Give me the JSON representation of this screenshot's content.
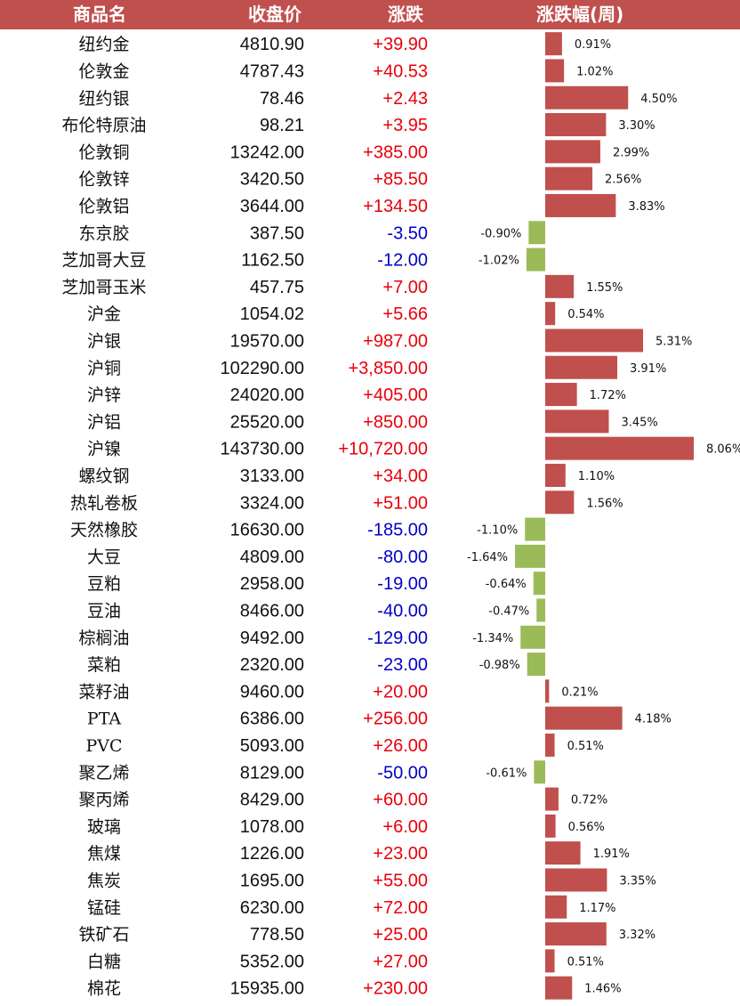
{
  "header": {
    "name": "商品名",
    "close": "收盘价",
    "change": "涨跌",
    "pct": "涨跌幅(周)"
  },
  "colors": {
    "header_bg": "#c0504d",
    "header_text": "#ffffff",
    "up_bar": "#c0504d",
    "down_bar": "#9bbb59",
    "up_text": "#e8000b",
    "down_text": "#0000c8"
  },
  "chart_data": {
    "type": "bar",
    "title": "",
    "columns": [
      "商品名",
      "收盘价",
      "涨跌",
      "涨跌幅(周)"
    ],
    "series": [
      {
        "name": "涨跌幅(周)",
        "unit": "%"
      }
    ],
    "rows": [
      {
        "name": "纽约金",
        "close": "4810.90",
        "change": "+39.90",
        "pct": 0.91,
        "pct_label": "0.91%"
      },
      {
        "name": "伦敦金",
        "close": "4787.43",
        "change": "+40.53",
        "pct": 1.02,
        "pct_label": "1.02%"
      },
      {
        "name": "纽约银",
        "close": "78.46",
        "change": "+2.43",
        "pct": 4.5,
        "pct_label": "4.50%"
      },
      {
        "name": "布伦特原油",
        "close": "98.21",
        "change": "+3.95",
        "pct": 3.3,
        "pct_label": "3.30%"
      },
      {
        "name": "伦敦铜",
        "close": "13242.00",
        "change": "+385.00",
        "pct": 2.99,
        "pct_label": "2.99%"
      },
      {
        "name": "伦敦锌",
        "close": "3420.50",
        "change": "+85.50",
        "pct": 2.56,
        "pct_label": "2.56%"
      },
      {
        "name": "伦敦铝",
        "close": "3644.00",
        "change": "+134.50",
        "pct": 3.83,
        "pct_label": "3.83%"
      },
      {
        "name": "东京胶",
        "close": "387.50",
        "change": "-3.50",
        "pct": -0.9,
        "pct_label": "-0.90%"
      },
      {
        "name": "芝加哥大豆",
        "close": "1162.50",
        "change": "-12.00",
        "pct": -1.02,
        "pct_label": "-1.02%"
      },
      {
        "name": "芝加哥玉米",
        "close": "457.75",
        "change": "+7.00",
        "pct": 1.55,
        "pct_label": "1.55%"
      },
      {
        "name": "沪金",
        "close": "1054.02",
        "change": "+5.66",
        "pct": 0.54,
        "pct_label": "0.54%"
      },
      {
        "name": "沪银",
        "close": "19570.00",
        "change": "+987.00",
        "pct": 5.31,
        "pct_label": "5.31%"
      },
      {
        "name": "沪铜",
        "close": "102290.00",
        "change": "+3,850.00",
        "pct": 3.91,
        "pct_label": "3.91%"
      },
      {
        "name": "沪锌",
        "close": "24020.00",
        "change": "+405.00",
        "pct": 1.72,
        "pct_label": "1.72%"
      },
      {
        "name": "沪铝",
        "close": "25520.00",
        "change": "+850.00",
        "pct": 3.45,
        "pct_label": "3.45%"
      },
      {
        "name": "沪镍",
        "close": "143730.00",
        "change": "+10,720.00",
        "pct": 8.06,
        "pct_label": "8.06%"
      },
      {
        "name": "螺纹钢",
        "close": "3133.00",
        "change": "+34.00",
        "pct": 1.1,
        "pct_label": "1.10%"
      },
      {
        "name": "热轧卷板",
        "close": "3324.00",
        "change": "+51.00",
        "pct": 1.56,
        "pct_label": "1.56%"
      },
      {
        "name": "天然橡胶",
        "close": "16630.00",
        "change": "-185.00",
        "pct": -1.1,
        "pct_label": "-1.10%"
      },
      {
        "name": "大豆",
        "close": "4809.00",
        "change": "-80.00",
        "pct": -1.64,
        "pct_label": "-1.64%"
      },
      {
        "name": "豆粕",
        "close": "2958.00",
        "change": "-19.00",
        "pct": -0.64,
        "pct_label": "-0.64%"
      },
      {
        "name": "豆油",
        "close": "8466.00",
        "change": "-40.00",
        "pct": -0.47,
        "pct_label": "-0.47%"
      },
      {
        "name": "棕榈油",
        "close": "9492.00",
        "change": "-129.00",
        "pct": -1.34,
        "pct_label": "-1.34%"
      },
      {
        "name": "菜粕",
        "close": "2320.00",
        "change": "-23.00",
        "pct": -0.98,
        "pct_label": "-0.98%"
      },
      {
        "name": "菜籽油",
        "close": "9460.00",
        "change": "+20.00",
        "pct": 0.21,
        "pct_label": "0.21%"
      },
      {
        "name": "PTA",
        "close": "6386.00",
        "change": "+256.00",
        "pct": 4.18,
        "pct_label": "4.18%"
      },
      {
        "name": "PVC",
        "close": "5093.00",
        "change": "+26.00",
        "pct": 0.51,
        "pct_label": "0.51%"
      },
      {
        "name": "聚乙烯",
        "close": "8129.00",
        "change": "-50.00",
        "pct": -0.61,
        "pct_label": "-0.61%"
      },
      {
        "name": "聚丙烯",
        "close": "8429.00",
        "change": "+60.00",
        "pct": 0.72,
        "pct_label": "0.72%"
      },
      {
        "name": "玻璃",
        "close": "1078.00",
        "change": "+6.00",
        "pct": 0.56,
        "pct_label": "0.56%"
      },
      {
        "name": "焦煤",
        "close": "1226.00",
        "change": "+23.00",
        "pct": 1.91,
        "pct_label": "1.91%"
      },
      {
        "name": "焦炭",
        "close": "1695.00",
        "change": "+55.00",
        "pct": 3.35,
        "pct_label": "3.35%"
      },
      {
        "name": "锰硅",
        "close": "6230.00",
        "change": "+72.00",
        "pct": 1.17,
        "pct_label": "1.17%"
      },
      {
        "name": "铁矿石",
        "close": "778.50",
        "change": "+25.00",
        "pct": 3.32,
        "pct_label": "3.32%"
      },
      {
        "name": "白糖",
        "close": "5352.00",
        "change": "+27.00",
        "pct": 0.51,
        "pct_label": "0.51%"
      },
      {
        "name": "棉花",
        "close": "15935.00",
        "change": "+230.00",
        "pct": 1.46,
        "pct_label": "1.46%"
      }
    ]
  }
}
